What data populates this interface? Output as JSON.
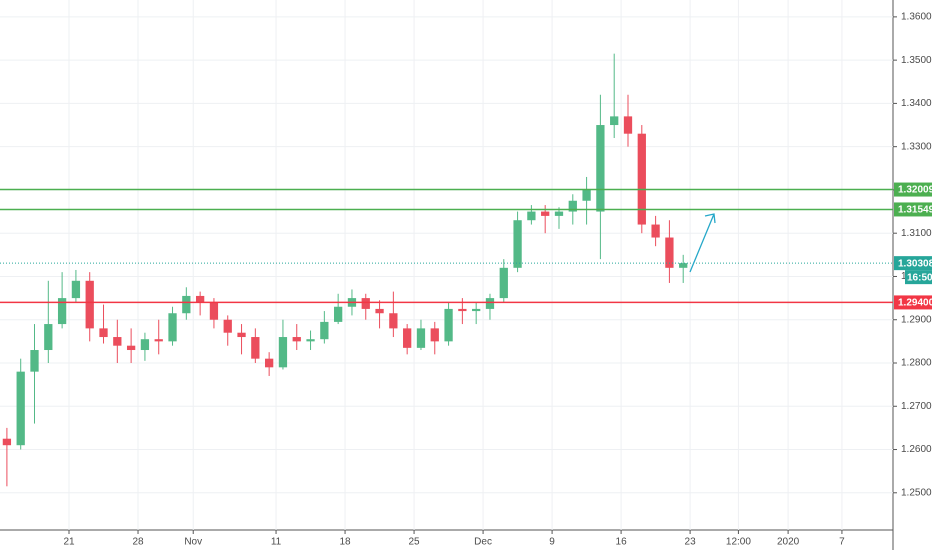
{
  "chart_data": {
    "type": "candlestick",
    "x": [
      0.5,
      1.5,
      2.5,
      3.5,
      4.5,
      5.5,
      6.5,
      7.5,
      8.5,
      9.5,
      10.5,
      11.5,
      12.5,
      13.5,
      14.5,
      15.5,
      16.5,
      17.5,
      18.5,
      19.5,
      20.5,
      21.5,
      22.5,
      23.5,
      24.5,
      25.5,
      26.5,
      27.5,
      28.5,
      29.5,
      30.5,
      31.5,
      32.5,
      33.5,
      34.5,
      35.5,
      36.5,
      37.5,
      38.5,
      39.5,
      40.5,
      41.5,
      42.5,
      43.5,
      44.5,
      45.5,
      46.5,
      47.5,
      48.5,
      49.5
    ],
    "open": [
      1.2625,
      1.261,
      1.278,
      1.283,
      1.289,
      1.295,
      1.299,
      1.288,
      1.286,
      1.284,
      1.283,
      1.2855,
      1.285,
      1.2915,
      1.2955,
      1.294,
      1.29,
      1.287,
      1.286,
      1.281,
      1.279,
      1.286,
      1.285,
      1.2855,
      1.2895,
      1.293,
      1.295,
      1.2925,
      1.2915,
      1.288,
      1.2835,
      1.288,
      1.285,
      1.2925,
      1.292,
      1.2925,
      1.295,
      1.302,
      1.313,
      1.315,
      1.314,
      1.315,
      1.3175,
      1.315,
      1.335,
      1.337,
      1.333,
      1.312,
      1.309,
      1.302
    ],
    "high": [
      1.265,
      1.281,
      1.289,
      1.299,
      1.301,
      1.3015,
      1.301,
      1.2935,
      1.29,
      1.288,
      1.287,
      1.29,
      1.293,
      1.2975,
      1.2965,
      1.295,
      1.291,
      1.289,
      1.288,
      1.2825,
      1.29,
      1.289,
      1.2875,
      1.292,
      1.296,
      1.297,
      1.296,
      1.2945,
      1.2965,
      1.289,
      1.29,
      1.2895,
      1.294,
      1.295,
      1.294,
      1.296,
      1.304,
      1.315,
      1.3165,
      1.3165,
      1.316,
      1.319,
      1.323,
      1.342,
      1.3515,
      1.342,
      1.335,
      1.314,
      1.313,
      1.305
    ],
    "low": [
      1.2515,
      1.26,
      1.266,
      1.28,
      1.288,
      1.294,
      1.285,
      1.2845,
      1.28,
      1.28,
      1.2805,
      1.282,
      1.284,
      1.29,
      1.291,
      1.288,
      1.284,
      1.282,
      1.28,
      1.277,
      1.2785,
      1.283,
      1.283,
      1.2845,
      1.289,
      1.291,
      1.29,
      1.288,
      1.286,
      1.282,
      1.283,
      1.282,
      1.284,
      1.289,
      1.289,
      1.29,
      1.294,
      1.301,
      1.312,
      1.31,
      1.311,
      1.312,
      1.312,
      1.304,
      1.332,
      1.33,
      1.31,
      1.307,
      1.2985,
      1.2985
    ],
    "close": [
      1.261,
      1.278,
      1.283,
      1.289,
      1.295,
      1.299,
      1.288,
      1.286,
      1.284,
      1.283,
      1.2855,
      1.285,
      1.2915,
      1.2955,
      1.294,
      1.29,
      1.287,
      1.286,
      1.281,
      1.279,
      1.286,
      1.285,
      1.2855,
      1.2895,
      1.293,
      1.295,
      1.2925,
      1.2915,
      1.288,
      1.2835,
      1.288,
      1.285,
      1.2925,
      1.292,
      1.2925,
      1.295,
      1.302,
      1.313,
      1.315,
      1.314,
      1.315,
      1.3175,
      1.32,
      1.335,
      1.337,
      1.333,
      1.312,
      1.309,
      1.302,
      1.30308
    ],
    "up_color": "#53b987",
    "down_color": "#eb4d5c",
    "xlim": [
      0,
      64.7
    ],
    "ylim": [
      1.2414,
      1.3639
    ],
    "xticks": [
      {
        "value": 5,
        "label": "21"
      },
      {
        "value": 10,
        "label": "28"
      },
      {
        "value": 14,
        "label": "Nov"
      },
      {
        "value": 20,
        "label": "11"
      },
      {
        "value": 25,
        "label": "18"
      },
      {
        "value": 30,
        "label": "25"
      },
      {
        "value": 35,
        "label": "Dec"
      },
      {
        "value": 40,
        "label": "9"
      },
      {
        "value": 45,
        "label": "16"
      },
      {
        "value": 50,
        "label": "23"
      },
      {
        "value": 53.5,
        "label": "12:00"
      },
      {
        "value": 57.1,
        "label": "2020"
      },
      {
        "value": 61,
        "label": "7"
      }
    ],
    "yticks": [
      {
        "value": 1.25,
        "label": "1.25000"
      },
      {
        "value": 1.26,
        "label": "1.26000"
      },
      {
        "value": 1.27,
        "label": "1.27000"
      },
      {
        "value": 1.28,
        "label": "1.28000"
      },
      {
        "value": 1.29,
        "label": "1.29000"
      },
      {
        "value": 1.3,
        "label": "1.30000"
      },
      {
        "value": 1.31,
        "label": "1.31000"
      },
      {
        "value": 1.32,
        "label": "1.32000"
      },
      {
        "value": 1.33,
        "label": "1.33000"
      },
      {
        "value": 1.34,
        "label": "1.34000"
      },
      {
        "value": 1.35,
        "label": "1.35000"
      },
      {
        "value": 1.36,
        "label": "1.36000"
      }
    ],
    "grid": true,
    "levels": [
      {
        "value": 1.32009,
        "label": "1.32009",
        "color": "#4caf50",
        "style": "solid"
      },
      {
        "value": 1.31549,
        "label": "1.31549",
        "color": "#4caf50",
        "style": "solid"
      },
      {
        "value": 1.30308,
        "label": "1.30308",
        "color": "#26a69a",
        "style": "dotted"
      },
      {
        "value": 1.294,
        "label": "1.29400",
        "color": "#f23645",
        "style": "solid"
      }
    ],
    "countdown": "16:50"
  }
}
